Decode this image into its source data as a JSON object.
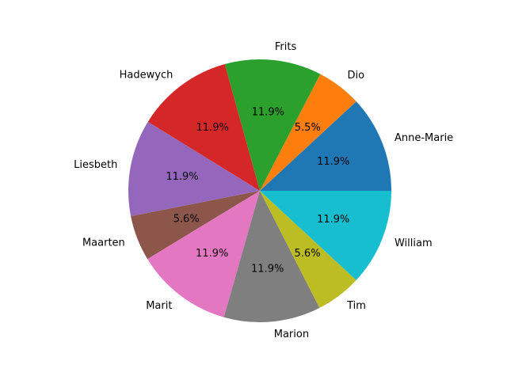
{
  "chart_data": {
    "type": "pie",
    "title": "",
    "start_angle_deg": 0,
    "direction": "counterclockwise",
    "slices": [
      {
        "label": "Anne-Marie",
        "value": 11.9,
        "pct_label": "11.9%",
        "color": "#1f77b4"
      },
      {
        "label": "Dio",
        "value": 5.5,
        "pct_label": "5.5%",
        "color": "#ff7f0e"
      },
      {
        "label": "Frits",
        "value": 11.9,
        "pct_label": "11.9%",
        "color": "#2ca02c"
      },
      {
        "label": "Hadewych",
        "value": 11.9,
        "pct_label": "11.9%",
        "color": "#d62728"
      },
      {
        "label": "Liesbeth",
        "value": 11.9,
        "pct_label": "11.9%",
        "color": "#9467bd"
      },
      {
        "label": "Maarten",
        "value": 5.6,
        "pct_label": "5.6%",
        "color": "#8c564b"
      },
      {
        "label": "Marit",
        "value": 11.9,
        "pct_label": "11.9%",
        "color": "#e377c2"
      },
      {
        "label": "Marion",
        "value": 11.9,
        "pct_label": "11.9%",
        "color": "#7f7f7f"
      },
      {
        "label": "Tim",
        "value": 5.6,
        "pct_label": "5.6%",
        "color": "#bcbd22"
      },
      {
        "label": "William",
        "value": 11.9,
        "pct_label": "11.9%",
        "color": "#17becf"
      }
    ]
  }
}
